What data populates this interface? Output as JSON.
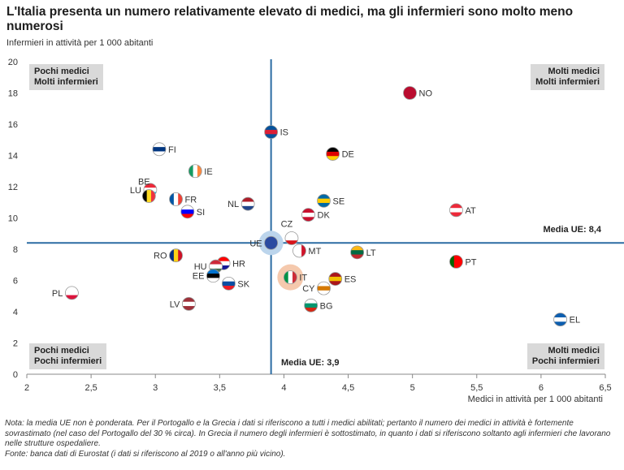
{
  "chart_data": {
    "type": "scatter",
    "title": "L'Italia presenta un numero relativamente elevato di medici, ma gli infermieri sono molto meno numerosi",
    "xlabel": "Medici in attività per 1 000 abitanti",
    "ylabel": "Infermieri in attività per 1 000 abitanti",
    "xlim": [
      2,
      6.5
    ],
    "ylim": [
      0,
      20
    ],
    "xticks": [
      "2",
      "2,5",
      "3",
      "3,5",
      "4",
      "4,5",
      "5",
      "5,5",
      "6",
      "6,5"
    ],
    "yticks": [
      "0",
      "2",
      "4",
      "6",
      "8",
      "10",
      "12",
      "14",
      "16",
      "18",
      "20"
    ],
    "grid": false,
    "mean_lines": {
      "x": 3.9,
      "y": 8.4,
      "x_label": "Media UE: 3,9",
      "y_label": "Media UE: 8,4",
      "color": "#2b6ca3"
    },
    "quadrants": {
      "top_left": [
        "Pochi medici",
        "Molti infermieri"
      ],
      "top_right": [
        "Molti medici",
        "Molti infermieri"
      ],
      "bottom_left": [
        "Pochi medici",
        "Pochi infermieri"
      ],
      "bottom_right": [
        "Molti medici",
        "Pochi infermieri"
      ]
    },
    "highlight": {
      "code": "IT",
      "color": "#f5c9ad"
    },
    "points": [
      {
        "code": "NO",
        "x": 4.98,
        "y": 18.0,
        "flag": [
          "h",
          "#ba0c2f",
          "#ba0c2f",
          "#ba0c2f"
        ]
      },
      {
        "code": "IS",
        "x": 3.9,
        "y": 15.5,
        "flag": [
          "h",
          "#02529c",
          "#dc1e35",
          "#02529c"
        ]
      },
      {
        "code": "FI",
        "x": 3.03,
        "y": 14.4,
        "flag": [
          "h",
          "#ffffff",
          "#003580",
          "#ffffff"
        ]
      },
      {
        "code": "DE",
        "x": 4.38,
        "y": 14.1,
        "flag": [
          "h",
          "#000000",
          "#dd0000",
          "#ffce00"
        ]
      },
      {
        "code": "IE",
        "x": 3.31,
        "y": 13.0,
        "flag": [
          "v",
          "#169b62",
          "#ffffff",
          "#ff883e"
        ]
      },
      {
        "code": "LU",
        "x": 2.96,
        "y": 11.8,
        "flag": [
          "h",
          "#ed2939",
          "#ffffff",
          "#00a1de"
        ]
      },
      {
        "code": "BE",
        "x": 2.95,
        "y": 11.4,
        "flag": [
          "v",
          "#000000",
          "#fdda24",
          "#ef3340"
        ]
      },
      {
        "code": "FR",
        "x": 3.16,
        "y": 11.2,
        "flag": [
          "v",
          "#0055a4",
          "#ffffff",
          "#ef4135"
        ]
      },
      {
        "code": "SE",
        "x": 4.31,
        "y": 11.1,
        "flag": [
          "h",
          "#006aa7",
          "#fecc00",
          "#006aa7"
        ]
      },
      {
        "code": "NL",
        "x": 3.72,
        "y": 10.9,
        "flag": [
          "h",
          "#ae1c28",
          "#ffffff",
          "#21468b"
        ]
      },
      {
        "code": "AT",
        "x": 5.34,
        "y": 10.5,
        "flag": [
          "h",
          "#ed2939",
          "#ffffff",
          "#ed2939"
        ]
      },
      {
        "code": "SI",
        "x": 3.25,
        "y": 10.4,
        "flag": [
          "h",
          "#ffffff",
          "#0000ff",
          "#ff0000"
        ]
      },
      {
        "code": "DK",
        "x": 4.19,
        "y": 10.2,
        "flag": [
          "h",
          "#c8102e",
          "#ffffff",
          "#c8102e"
        ]
      },
      {
        "code": "CZ",
        "x": 4.06,
        "y": 8.7,
        "flag": [
          "h",
          "#ffffff",
          "#ffffff",
          "#d7141a"
        ]
      },
      {
        "code": "UE",
        "x": 3.9,
        "y": 8.4,
        "flag": [
          "h",
          "#2b4aa0",
          "#2b4aa0",
          "#2b4aa0"
        ]
      },
      {
        "code": "MT",
        "x": 4.12,
        "y": 7.9,
        "flag": [
          "v",
          "#ffffff",
          "#ffffff",
          "#cf142b"
        ]
      },
      {
        "code": "LT",
        "x": 4.57,
        "y": 7.8,
        "flag": [
          "h",
          "#fdb913",
          "#006a44",
          "#c1272d"
        ]
      },
      {
        "code": "RO",
        "x": 3.16,
        "y": 7.6,
        "flag": [
          "v",
          "#002b7f",
          "#fcd116",
          "#ce1126"
        ]
      },
      {
        "code": "PT",
        "x": 5.34,
        "y": 7.2,
        "flag": [
          "v",
          "#006600",
          "#ff0000",
          "#ff0000"
        ]
      },
      {
        "code": "HR",
        "x": 3.53,
        "y": 7.1,
        "flag": [
          "h",
          "#ff0000",
          "#ffffff",
          "#171796"
        ]
      },
      {
        "code": "HU",
        "x": 3.47,
        "y": 6.9,
        "flag": [
          "h",
          "#ce2939",
          "#ffffff",
          "#477050"
        ]
      },
      {
        "code": "EE",
        "x": 3.45,
        "y": 6.3,
        "flag": [
          "h",
          "#0072ce",
          "#000000",
          "#ffffff"
        ]
      },
      {
        "code": "IT",
        "x": 4.05,
        "y": 6.2,
        "flag": [
          "v",
          "#009246",
          "#ffffff",
          "#ce2b37"
        ]
      },
      {
        "code": "ES",
        "x": 4.4,
        "y": 6.1,
        "flag": [
          "h",
          "#aa151b",
          "#f1bf00",
          "#aa151b"
        ]
      },
      {
        "code": "SK",
        "x": 3.57,
        "y": 5.8,
        "flag": [
          "h",
          "#ffffff",
          "#0b4ea2",
          "#ee1c25"
        ]
      },
      {
        "code": "CY",
        "x": 4.31,
        "y": 5.5,
        "flag": [
          "h",
          "#ffffff",
          "#d57800",
          "#ffffff"
        ]
      },
      {
        "code": "PL",
        "x": 2.35,
        "y": 5.2,
        "flag": [
          "h",
          "#ffffff",
          "#ffffff",
          "#dc143c"
        ]
      },
      {
        "code": "LV",
        "x": 3.26,
        "y": 4.5,
        "flag": [
          "h",
          "#9e3039",
          "#ffffff",
          "#9e3039"
        ]
      },
      {
        "code": "BG",
        "x": 4.21,
        "y": 4.4,
        "flag": [
          "h",
          "#ffffff",
          "#00966e",
          "#d62612"
        ]
      },
      {
        "code": "EL",
        "x": 6.15,
        "y": 3.5,
        "flag": [
          "h",
          "#0d5eaf",
          "#ffffff",
          "#0d5eaf"
        ]
      }
    ]
  },
  "notes": [
    "Nota: la media UE non è ponderata. Per il Portogallo e la Grecia i dati si riferiscono a tutti i medici abilitati; pertanto il numero dei medici in attività è fortemente sovrastimato (nel caso del Portogallo del 30 % circa). In Grecia il numero degli infermieri è sottostimato, in quanto i dati si riferiscono soltanto agli infermieri che lavorano nelle strutture ospedaliere.",
    "Fonte: banca dati di Eurostat (i dati si riferiscono al 2019 o all'anno più vicino)."
  ]
}
